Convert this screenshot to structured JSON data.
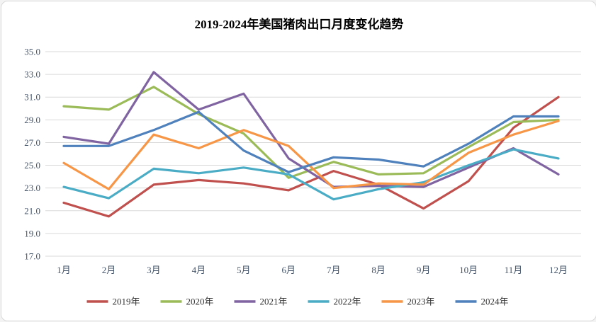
{
  "chart_data": {
    "type": "line",
    "title": "2019-2024年美国猪肉出口月度变化趋势",
    "categories": [
      "1月",
      "2月",
      "3月",
      "4月",
      "5月",
      "6月",
      "7月",
      "8月",
      "9月",
      "10月",
      "11月",
      "12月"
    ],
    "series": [
      {
        "name": "2019年",
        "color": "#C0504D",
        "values": [
          21.7,
          20.5,
          23.3,
          23.7,
          23.4,
          22.8,
          24.5,
          23.3,
          21.2,
          23.6,
          28.3,
          31.0
        ]
      },
      {
        "name": "2020年",
        "color": "#9BBB59",
        "values": [
          30.2,
          29.9,
          31.9,
          29.5,
          27.8,
          23.9,
          25.3,
          24.2,
          24.3,
          26.6,
          28.8,
          29.0
        ]
      },
      {
        "name": "2021年",
        "color": "#8064A2",
        "values": [
          27.5,
          26.9,
          33.2,
          29.9,
          31.3,
          25.6,
          23.1,
          23.2,
          23.1,
          24.8,
          26.5,
          24.2
        ]
      },
      {
        "name": "2022年",
        "color": "#4BACC6",
        "values": [
          23.1,
          22.1,
          24.7,
          24.3,
          24.8,
          24.2,
          22.0,
          22.9,
          23.5,
          25.0,
          26.4,
          25.6
        ]
      },
      {
        "name": "2023年",
        "color": "#F79646",
        "values": [
          25.2,
          22.9,
          27.7,
          26.5,
          28.1,
          26.7,
          23.0,
          23.4,
          23.3,
          26.1,
          27.7,
          28.9
        ]
      },
      {
        "name": "2024年",
        "color": "#4F81BD",
        "values": [
          26.7,
          26.7,
          28.1,
          29.7,
          26.3,
          24.4,
          25.7,
          25.5,
          24.9,
          26.9,
          29.3,
          29.3
        ]
      }
    ],
    "ylim": [
      17.0,
      35.0
    ],
    "ytick_step": 2.0,
    "yticks": [
      "35.0",
      "33.0",
      "31.0",
      "29.0",
      "27.0",
      "25.0",
      "23.0",
      "21.0",
      "19.0",
      "17.0"
    ],
    "xlabel": "",
    "ylabel": "",
    "grid": "horizontal-only",
    "legend_position": "bottom"
  }
}
